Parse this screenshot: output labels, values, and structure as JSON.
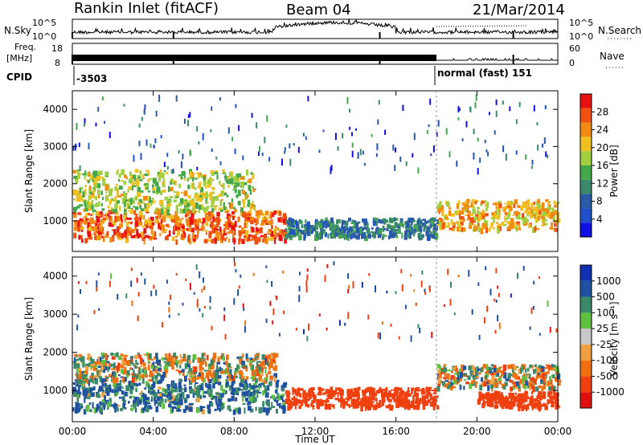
{
  "header": {
    "radar": "Rankin Inlet (fitACF)",
    "beam": "Beam 04",
    "date": "21/Mar/2014"
  },
  "top_panels": {
    "nsky_label": "N.Sky",
    "nsearch_label": "N.Search",
    "left_ticks": [
      "10^5",
      "10^0"
    ],
    "right_ticks": [
      "10^5",
      "10^0"
    ],
    "freq_label_1": "Freq.",
    "freq_label_2": "[MHz]",
    "freq_ticks": [
      "18",
      "8"
    ],
    "nave_label": "Nave",
    "nave_ticks": [
      "60",
      "0"
    ],
    "cpid_label": "CPID",
    "cpid_value_1": "-3503",
    "cpid_value_2": "normal (fast) 151"
  },
  "colors": {
    "power": [
      "#1010e0",
      "#2050c8",
      "#2a5aa8",
      "#3a8a6a",
      "#44a84a",
      "#a0d040",
      "#f0c020",
      "#f08a10",
      "#f05010",
      "#e81010"
    ],
    "velocity": [
      "#1030b0",
      "#2050a0",
      "#3a8a6a",
      "#60c040",
      "#c8c8c8",
      "#f0a040",
      "#f07010",
      "#f04010",
      "#e01010"
    ]
  },
  "chart_data": [
    {
      "type": "heatmap",
      "panel": "power",
      "ylabel": "Slant Range [km]",
      "xlabel": "",
      "ylim": [
        180,
        4500
      ],
      "yticks": [
        "1000",
        "2000",
        "3000",
        "4000"
      ],
      "colorbar_label": "Power [dB]",
      "colorbar_ticks": [
        "4",
        "8",
        "12",
        "16",
        "20",
        "24",
        "28"
      ],
      "colorbar_range": [
        0,
        32
      ],
      "scatter_bands": [
        {
          "t_start": 0.0,
          "t_end": 10.5,
          "range_low": 500,
          "range_high": 1300,
          "value": 26
        },
        {
          "t_start": 0.0,
          "t_end": 9.0,
          "range_low": 1300,
          "range_high": 2400,
          "value": 18
        },
        {
          "t_start": 10.5,
          "t_end": 18.0,
          "range_low": 600,
          "range_high": 1100,
          "value": 10
        },
        {
          "t_start": 18.0,
          "t_end": 24.0,
          "range_low": 800,
          "range_high": 1600,
          "value": 22
        }
      ]
    },
    {
      "type": "heatmap",
      "panel": "velocity",
      "ylabel": "Slant Range [km]",
      "xlabel": "Time UT",
      "ylim": [
        180,
        4500
      ],
      "yticks": [
        "1000",
        "2000",
        "3000",
        "4000"
      ],
      "xticks": [
        "00:00",
        "04:00",
        "08:00",
        "12:00",
        "16:00",
        "20:00",
        "00:00"
      ],
      "xlim_hours": [
        0,
        24
      ],
      "colorbar_label": "Velocity [m s⁻¹]",
      "colorbar_ticks": [
        "1000",
        "500",
        "100",
        "25",
        "-25",
        "-100",
        "-500",
        "-1000"
      ],
      "scatter_bands": [
        {
          "t_start": 0.0,
          "t_end": 10.5,
          "range_low": 500,
          "range_high": 1300,
          "value": 120
        },
        {
          "t_start": 0.0,
          "t_end": 10.0,
          "range_low": 1300,
          "range_high": 2000,
          "value": 10
        },
        {
          "t_start": 10.5,
          "t_end": 18.0,
          "range_low": 600,
          "range_high": 1100,
          "value": -300
        },
        {
          "t_start": 18.0,
          "t_end": 24.0,
          "range_low": 1100,
          "range_high": 1700,
          "value": 0
        },
        {
          "t_start": 20.0,
          "t_end": 24.0,
          "range_low": 600,
          "range_high": 1000,
          "value": -300
        }
      ]
    }
  ]
}
